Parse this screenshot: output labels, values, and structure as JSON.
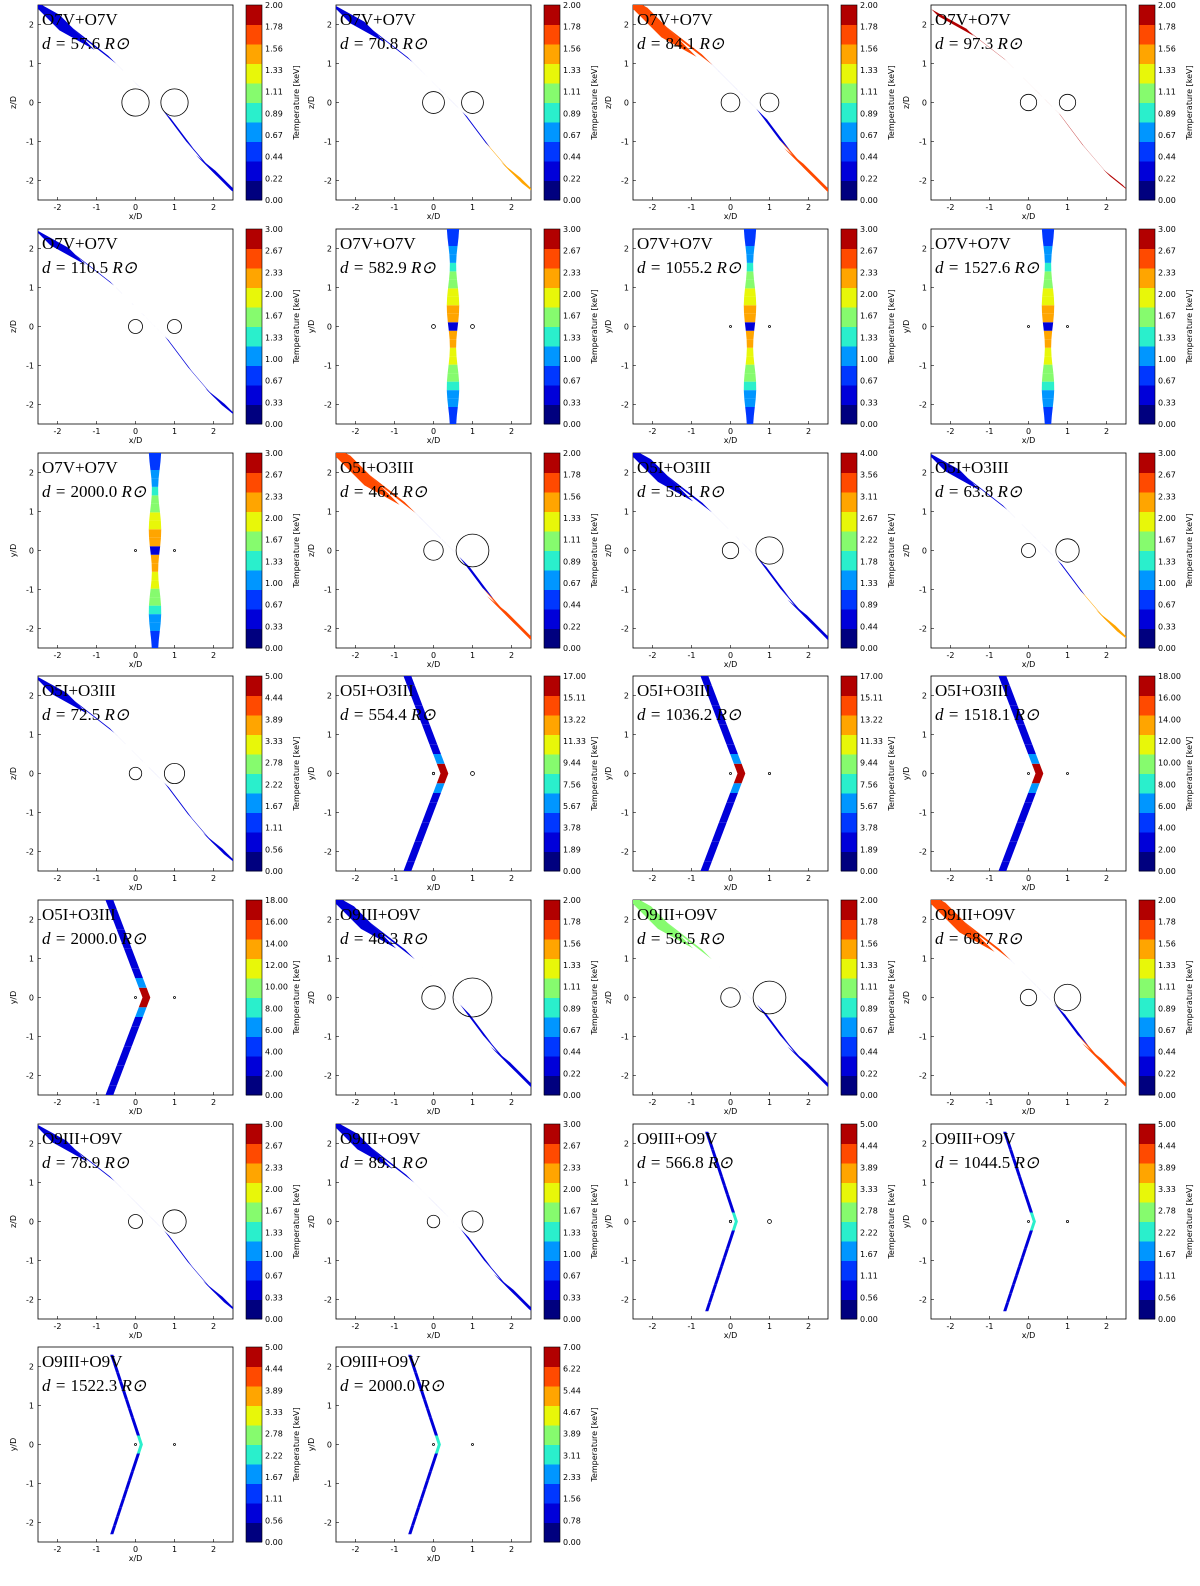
{
  "figure": {
    "x_ticks": [
      "-2",
      "-1",
      "0",
      "1",
      "2"
    ],
    "y_ticks": [
      "2",
      "1",
      "0",
      "-1",
      "-2"
    ],
    "xlabel": "x/D",
    "colorbar_label": "Temperature [keV]",
    "d_prefix": "d = ",
    "d_unit": "R⊙"
  },
  "chart_data": [
    {
      "type": "heatmap",
      "title": "O7V+O7V",
      "distance": "57.6",
      "ylabel": "z/D",
      "cbar_max": 2,
      "cbar_ticks": [
        "2.00",
        "1.78",
        "1.56",
        "1.33",
        "1.11",
        "0.89",
        "0.67",
        "0.44",
        "0.22",
        "0.00"
      ],
      "stars": [
        {
          "x": 0,
          "z": 0,
          "r": 0.35
        },
        {
          "x": 1,
          "z": 0,
          "r": 0.35
        }
      ],
      "shape": "s-curve-wide",
      "xlim": [
        -2.5,
        2.5
      ],
      "ylim": [
        -2.5,
        2.5
      ]
    },
    {
      "type": "heatmap",
      "title": "O7V+O7V",
      "distance": "70.8",
      "ylabel": "z/D",
      "cbar_max": 2,
      "cbar_ticks": [
        "2.00",
        "1.78",
        "1.56",
        "1.33",
        "1.11",
        "0.89",
        "0.67",
        "0.44",
        "0.22",
        "0.00"
      ],
      "stars": [
        {
          "x": 0,
          "z": 0,
          "r": 0.28
        },
        {
          "x": 1,
          "z": 0,
          "r": 0.28
        }
      ],
      "shape": "s-curve-fan",
      "xlim": [
        -2.5,
        2.5
      ],
      "ylim": [
        -2.5,
        2.5
      ]
    },
    {
      "type": "heatmap",
      "title": "O7V+O7V",
      "distance": "84.1",
      "ylabel": "z/D",
      "cbar_max": 2,
      "cbar_ticks": [
        "2.00",
        "1.78",
        "1.56",
        "1.33",
        "1.11",
        "0.89",
        "0.67",
        "0.44",
        "0.22",
        "0.00"
      ],
      "stars": [
        {
          "x": 0,
          "z": 0,
          "r": 0.24
        },
        {
          "x": 1,
          "z": 0,
          "r": 0.24
        }
      ],
      "shape": "s-curve-hot",
      "xlim": [
        -2.5,
        2.5
      ],
      "ylim": [
        -2.5,
        2.5
      ]
    },
    {
      "type": "heatmap",
      "title": "O7V+O7V",
      "distance": "97.3",
      "ylabel": "z/D",
      "cbar_max": 2,
      "cbar_ticks": [
        "2.00",
        "1.78",
        "1.56",
        "1.33",
        "1.11",
        "0.89",
        "0.67",
        "0.44",
        "0.22",
        "0.00"
      ],
      "stars": [
        {
          "x": 0,
          "z": 0,
          "r": 0.21
        },
        {
          "x": 1,
          "z": 0,
          "r": 0.21
        }
      ],
      "shape": "s-curve-thin",
      "xlim": [
        -2.5,
        2.5
      ],
      "ylim": [
        -2.5,
        2.5
      ]
    },
    {
      "type": "heatmap",
      "title": "O7V+O7V",
      "distance": "110.5",
      "ylabel": "z/D",
      "cbar_max": 3,
      "cbar_ticks": [
        "3.00",
        "2.67",
        "2.33",
        "2.00",
        "1.67",
        "1.33",
        "1.00",
        "0.67",
        "0.33",
        "0.00"
      ],
      "stars": [
        {
          "x": 0,
          "z": 0,
          "r": 0.18
        },
        {
          "x": 1,
          "z": 0,
          "r": 0.18
        }
      ],
      "shape": "s-curve-mid",
      "xlim": [
        -2.5,
        2.5
      ],
      "ylim": [
        -2.5,
        2.5
      ]
    },
    {
      "type": "heatmap",
      "title": "O7V+O7V",
      "distance": "582.9",
      "ylabel": "y/D",
      "cbar_max": 3,
      "cbar_ticks": [
        "3.00",
        "2.67",
        "2.33",
        "2.00",
        "1.67",
        "1.33",
        "1.00",
        "0.67",
        "0.33",
        "0.00"
      ],
      "stars": [
        {
          "x": 0,
          "z": 0,
          "r": 0.05
        },
        {
          "x": 1,
          "z": 0,
          "r": 0.05
        }
      ],
      "shape": "vertical",
      "xlim": [
        -2.5,
        2.5
      ],
      "ylim": [
        -2.5,
        2.5
      ]
    },
    {
      "type": "heatmap",
      "title": "O7V+O7V",
      "distance": "1055.2",
      "ylabel": "y/D",
      "cbar_max": 3,
      "cbar_ticks": [
        "3.00",
        "2.67",
        "2.33",
        "2.00",
        "1.67",
        "1.33",
        "1.00",
        "0.67",
        "0.33",
        "0.00"
      ],
      "stars": [
        {
          "x": 0,
          "z": 0,
          "r": 0.025
        },
        {
          "x": 1,
          "z": 0,
          "r": 0.025
        }
      ],
      "shape": "vertical",
      "xlim": [
        -2.5,
        2.5
      ],
      "ylim": [
        -2.5,
        2.5
      ]
    },
    {
      "type": "heatmap",
      "title": "O7V+O7V",
      "distance": "1527.6",
      "ylabel": "y/D",
      "cbar_max": 3,
      "cbar_ticks": [
        "3.00",
        "2.67",
        "2.33",
        "2.00",
        "1.67",
        "1.33",
        "1.00",
        "0.67",
        "0.33",
        "0.00"
      ],
      "stars": [
        {
          "x": 0,
          "z": 0,
          "r": 0.018
        },
        {
          "x": 1,
          "z": 0,
          "r": 0.018
        }
      ],
      "shape": "vertical",
      "xlim": [
        -2.5,
        2.5
      ],
      "ylim": [
        -2.5,
        2.5
      ]
    },
    {
      "type": "heatmap",
      "title": "O7V+O7V",
      "distance": "2000.0",
      "ylabel": "y/D",
      "cbar_max": 3,
      "cbar_ticks": [
        "3.00",
        "2.67",
        "2.33",
        "2.00",
        "1.67",
        "1.33",
        "1.00",
        "0.67",
        "0.33",
        "0.00"
      ],
      "stars": [
        {
          "x": 0,
          "z": 0,
          "r": 0.015
        },
        {
          "x": 1,
          "z": 0,
          "r": 0.015
        }
      ],
      "shape": "vertical",
      "xlim": [
        -2.5,
        2.5
      ],
      "ylim": [
        -2.5,
        2.5
      ]
    },
    {
      "type": "heatmap",
      "title": "O5I+O3III",
      "distance": "46.4",
      "ylabel": "z/D",
      "cbar_max": 2,
      "cbar_ticks": [
        "2.00",
        "1.78",
        "1.56",
        "1.33",
        "1.11",
        "0.89",
        "0.67",
        "0.44",
        "0.22",
        "0.00"
      ],
      "stars": [
        {
          "x": 0,
          "z": 0,
          "r": 0.25
        },
        {
          "x": 1,
          "z": 0,
          "r": 0.42
        }
      ],
      "shape": "asym-hot",
      "xlim": [
        -2.5,
        2.5
      ],
      "ylim": [
        -2.5,
        2.5
      ]
    },
    {
      "type": "heatmap",
      "title": "O5I+O3III",
      "distance": "55.1",
      "ylabel": "z/D",
      "cbar_max": 4,
      "cbar_ticks": [
        "4.00",
        "3.56",
        "3.11",
        "2.67",
        "2.22",
        "1.78",
        "1.33",
        "0.89",
        "0.44",
        "0.00"
      ],
      "stars": [
        {
          "x": 0,
          "z": 0,
          "r": 0.21
        },
        {
          "x": 1,
          "z": 0,
          "r": 0.35
        }
      ],
      "shape": "asym-blue",
      "xlim": [
        -2.5,
        2.5
      ],
      "ylim": [
        -2.5,
        2.5
      ]
    },
    {
      "type": "heatmap",
      "title": "O5I+O3III",
      "distance": "63.8",
      "ylabel": "z/D",
      "cbar_max": 3,
      "cbar_ticks": [
        "3.00",
        "2.67",
        "2.33",
        "2.00",
        "1.67",
        "1.33",
        "1.00",
        "0.67",
        "0.33",
        "0.00"
      ],
      "stars": [
        {
          "x": 0,
          "z": 0,
          "r": 0.18
        },
        {
          "x": 1,
          "z": 0,
          "r": 0.3
        }
      ],
      "shape": "asym-fan",
      "xlim": [
        -2.5,
        2.5
      ],
      "ylim": [
        -2.5,
        2.5
      ]
    },
    {
      "type": "heatmap",
      "title": "O5I+O3III",
      "distance": "72.5",
      "ylabel": "z/D",
      "cbar_max": 5,
      "cbar_ticks": [
        "5.00",
        "4.44",
        "3.89",
        "3.33",
        "2.78",
        "2.22",
        "1.67",
        "1.11",
        "0.56",
        "0.00"
      ],
      "stars": [
        {
          "x": 0,
          "z": 0,
          "r": 0.16
        },
        {
          "x": 1,
          "z": 0,
          "r": 0.26
        }
      ],
      "shape": "asym-blue2",
      "xlim": [
        -2.5,
        2.5
      ],
      "ylim": [
        -2.5,
        2.5
      ]
    },
    {
      "type": "heatmap",
      "title": "O5I+O3III",
      "distance": "554.4",
      "ylabel": "y/D",
      "cbar_max": 17,
      "cbar_ticks": [
        "17.00",
        "15.11",
        "13.22",
        "11.33",
        "9.44",
        "7.56",
        "5.67",
        "3.78",
        "1.89",
        "0.00"
      ],
      "stars": [
        {
          "x": 0,
          "z": 0,
          "r": 0.03
        },
        {
          "x": 1,
          "z": 0,
          "r": 0.05
        }
      ],
      "shape": "chevron",
      "xlim": [
        -2.5,
        2.5
      ],
      "ylim": [
        -2.5,
        2.5
      ]
    },
    {
      "type": "heatmap",
      "title": "O5I+O3III",
      "distance": "1036.2",
      "ylabel": "y/D",
      "cbar_max": 17,
      "cbar_ticks": [
        "17.00",
        "15.11",
        "13.22",
        "11.33",
        "9.44",
        "7.56",
        "5.67",
        "3.78",
        "1.89",
        "0.00"
      ],
      "stars": [
        {
          "x": 0,
          "z": 0,
          "r": 0.018
        },
        {
          "x": 1,
          "z": 0,
          "r": 0.028
        }
      ],
      "shape": "chevron",
      "xlim": [
        -2.5,
        2.5
      ],
      "ylim": [
        -2.5,
        2.5
      ]
    },
    {
      "type": "heatmap",
      "title": "O5I+O3III",
      "distance": "1518.1",
      "ylabel": "y/D",
      "cbar_max": 18,
      "cbar_ticks": [
        "18.00",
        "16.00",
        "14.00",
        "12.00",
        "10.00",
        "8.00",
        "6.00",
        "4.00",
        "2.00",
        "0.00"
      ],
      "stars": [
        {
          "x": 0,
          "z": 0,
          "r": 0.015
        },
        {
          "x": 1,
          "z": 0,
          "r": 0.02
        }
      ],
      "shape": "chevron",
      "xlim": [
        -2.5,
        2.5
      ],
      "ylim": [
        -2.5,
        2.5
      ]
    },
    {
      "type": "heatmap",
      "title": "O5I+O3III",
      "distance": "2000.0",
      "ylabel": "y/D",
      "cbar_max": 18,
      "cbar_ticks": [
        "18.00",
        "16.00",
        "14.00",
        "12.00",
        "10.00",
        "8.00",
        "6.00",
        "4.00",
        "2.00",
        "0.00"
      ],
      "stars": [
        {
          "x": 0,
          "z": 0,
          "r": 0.012
        },
        {
          "x": 1,
          "z": 0,
          "r": 0.015
        }
      ],
      "shape": "chevron",
      "xlim": [
        -2.5,
        2.5
      ],
      "ylim": [
        -2.5,
        2.5
      ]
    },
    {
      "type": "heatmap",
      "title": "O9III+O9V",
      "distance": "48.3",
      "ylabel": "z/D",
      "cbar_max": 2,
      "cbar_ticks": [
        "2.00",
        "1.78",
        "1.56",
        "1.33",
        "1.11",
        "0.89",
        "0.67",
        "0.44",
        "0.22",
        "0.00"
      ],
      "stars": [
        {
          "x": 0,
          "z": 0,
          "r": 0.3
        },
        {
          "x": 1,
          "z": 0,
          "r": 0.5
        }
      ],
      "shape": "o9-blue",
      "xlim": [
        -2.5,
        2.5
      ],
      "ylim": [
        -2.5,
        2.5
      ]
    },
    {
      "type": "heatmap",
      "title": "O9III+O9V",
      "distance": "58.5",
      "ylabel": "z/D",
      "cbar_max": 2,
      "cbar_ticks": [
        "2.00",
        "1.78",
        "1.56",
        "1.33",
        "1.11",
        "0.89",
        "0.67",
        "0.44",
        "0.22",
        "0.00"
      ],
      "stars": [
        {
          "x": 0,
          "z": 0,
          "r": 0.25
        },
        {
          "x": 1,
          "z": 0,
          "r": 0.42
        }
      ],
      "shape": "o9-green",
      "xlim": [
        -2.5,
        2.5
      ],
      "ylim": [
        -2.5,
        2.5
      ]
    },
    {
      "type": "heatmap",
      "title": "O9III+O9V",
      "distance": "68.7",
      "ylabel": "z/D",
      "cbar_max": 2,
      "cbar_ticks": [
        "2.00",
        "1.78",
        "1.56",
        "1.33",
        "1.11",
        "0.89",
        "0.67",
        "0.44",
        "0.22",
        "0.00"
      ],
      "stars": [
        {
          "x": 0,
          "z": 0,
          "r": 0.21
        },
        {
          "x": 1,
          "z": 0,
          "r": 0.34
        }
      ],
      "shape": "o9-hot",
      "xlim": [
        -2.5,
        2.5
      ],
      "ylim": [
        -2.5,
        2.5
      ]
    },
    {
      "type": "heatmap",
      "title": "O9III+O9V",
      "distance": "78.9",
      "ylabel": "z/D",
      "cbar_max": 3,
      "cbar_ticks": [
        "3.00",
        "2.67",
        "2.33",
        "2.00",
        "1.67",
        "1.33",
        "1.00",
        "0.67",
        "0.33",
        "0.00"
      ],
      "stars": [
        {
          "x": 0,
          "z": 0,
          "r": 0.18
        },
        {
          "x": 1,
          "z": 0,
          "r": 0.3
        }
      ],
      "shape": "s-curve-thin2",
      "xlim": [
        -2.5,
        2.5
      ],
      "ylim": [
        -2.5,
        2.5
      ]
    },
    {
      "type": "heatmap",
      "title": "O9III+O9V",
      "distance": "89.1",
      "ylabel": "z/D",
      "cbar_max": 3,
      "cbar_ticks": [
        "3.00",
        "2.67",
        "2.33",
        "2.00",
        "1.67",
        "1.33",
        "1.00",
        "0.67",
        "0.33",
        "0.00"
      ],
      "stars": [
        {
          "x": 0,
          "z": 0,
          "r": 0.16
        },
        {
          "x": 1,
          "z": 0,
          "r": 0.27
        }
      ],
      "shape": "o9-wide",
      "xlim": [
        -2.5,
        2.5
      ],
      "ylim": [
        -2.5,
        2.5
      ]
    },
    {
      "type": "heatmap",
      "title": "O9III+O9V",
      "distance": "566.8",
      "ylabel": "y/D",
      "cbar_max": 5,
      "cbar_ticks": [
        "5.00",
        "4.44",
        "3.89",
        "3.33",
        "2.78",
        "2.22",
        "1.67",
        "1.11",
        "0.56",
        "0.00"
      ],
      "stars": [
        {
          "x": 0,
          "z": 0,
          "r": 0.03
        },
        {
          "x": 1,
          "z": 0,
          "r": 0.05
        }
      ],
      "shape": "thin-chevron",
      "xlim": [
        -2.5,
        2.5
      ],
      "ylim": [
        -2.5,
        2.5
      ]
    },
    {
      "type": "heatmap",
      "title": "O9III+O9V",
      "distance": "1044.5",
      "ylabel": "y/D",
      "cbar_max": 5,
      "cbar_ticks": [
        "5.00",
        "4.44",
        "3.89",
        "3.33",
        "2.78",
        "2.22",
        "1.67",
        "1.11",
        "0.56",
        "0.00"
      ],
      "stars": [
        {
          "x": 0,
          "z": 0,
          "r": 0.018
        },
        {
          "x": 1,
          "z": 0,
          "r": 0.028
        }
      ],
      "shape": "thin-chevron",
      "xlim": [
        -2.5,
        2.5
      ],
      "ylim": [
        -2.5,
        2.5
      ]
    },
    {
      "type": "heatmap",
      "title": "O9III+O9V",
      "distance": "1522.3",
      "ylabel": "y/D",
      "cbar_max": 5,
      "cbar_ticks": [
        "5.00",
        "4.44",
        "3.89",
        "3.33",
        "2.78",
        "2.22",
        "1.67",
        "1.11",
        "0.56",
        "0.00"
      ],
      "stars": [
        {
          "x": 0,
          "z": 0,
          "r": 0.013
        },
        {
          "x": 1,
          "z": 0,
          "r": 0.02
        }
      ],
      "shape": "thin-chevron",
      "xlim": [
        -2.5,
        2.5
      ],
      "ylim": [
        -2.5,
        2.5
      ]
    },
    {
      "type": "heatmap",
      "title": "O9III+O9V",
      "distance": "2000.0",
      "ylabel": "y/D",
      "cbar_max": 7,
      "cbar_ticks": [
        "7.00",
        "6.22",
        "5.44",
        "4.67",
        "3.89",
        "3.11",
        "2.33",
        "1.56",
        "0.78",
        "0.00"
      ],
      "stars": [
        {
          "x": 0,
          "z": 0,
          "r": 0.01
        },
        {
          "x": 1,
          "z": 0,
          "r": 0.015
        }
      ],
      "shape": "thin-chevron",
      "xlim": [
        -2.5,
        2.5
      ],
      "ylim": [
        -2.5,
        2.5
      ]
    }
  ]
}
